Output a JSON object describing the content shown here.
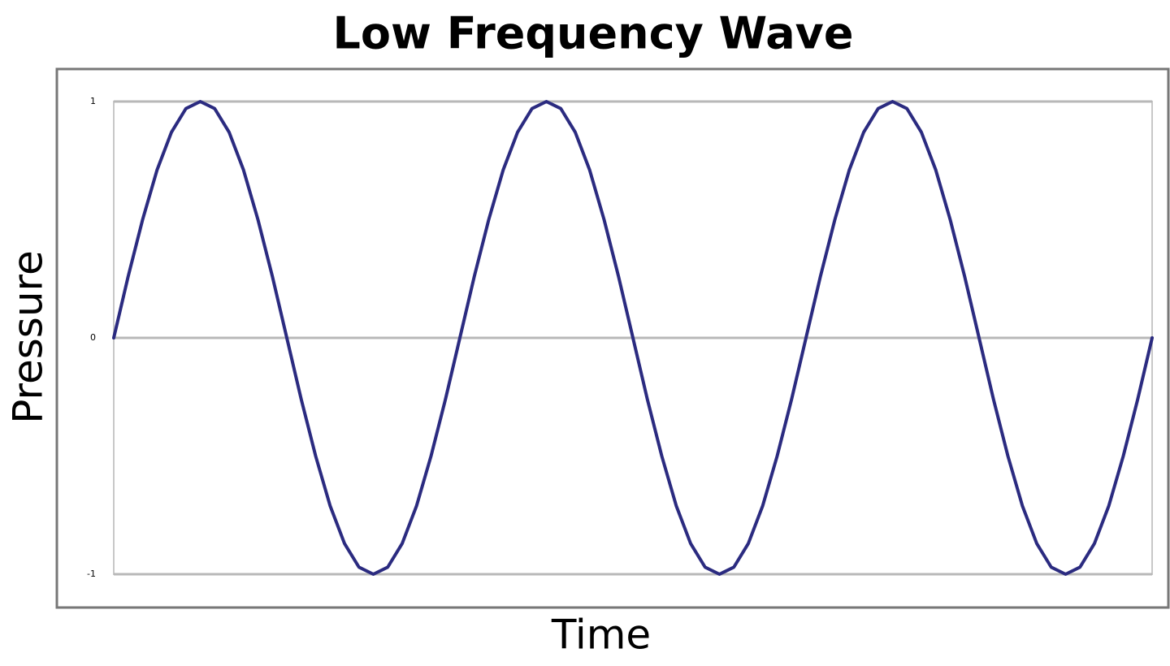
{
  "chart_data": {
    "type": "line",
    "title": "Low Frequency Wave",
    "x_label": "Time",
    "y_label": "Pressure",
    "x": [
      0,
      15,
      30,
      45,
      60,
      75,
      90,
      105,
      120,
      135,
      150,
      165,
      180,
      195,
      210,
      225,
      240,
      255,
      270,
      285,
      300,
      315,
      330,
      345,
      360,
      375,
      390,
      405,
      420,
      435,
      450,
      465,
      480,
      495,
      510,
      525,
      540,
      555,
      570,
      585,
      600,
      615,
      630,
      645,
      660,
      675,
      690,
      705,
      720,
      735,
      750,
      765,
      780,
      795,
      810,
      825,
      840,
      855,
      870,
      885,
      900,
      915,
      930,
      945,
      960,
      975,
      990,
      1005,
      1020,
      1035,
      1050,
      1065,
      1080
    ],
    "values": [
      0,
      0.26,
      0.5,
      0.71,
      0.87,
      0.97,
      1,
      0.97,
      0.87,
      0.71,
      0.5,
      0.26,
      0,
      -0.26,
      -0.5,
      -0.71,
      -0.87,
      -0.97,
      -1,
      -0.97,
      -0.87,
      -0.71,
      -0.5,
      -0.26,
      0,
      0.26,
      0.5,
      0.71,
      0.87,
      0.97,
      1,
      0.97,
      0.87,
      0.71,
      0.5,
      0.26,
      0,
      -0.26,
      -0.5,
      -0.71,
      -0.87,
      -0.97,
      -1,
      -0.97,
      -0.87,
      -0.71,
      -0.5,
      -0.26,
      0,
      0.26,
      0.5,
      0.71,
      0.87,
      0.97,
      1,
      0.97,
      0.87,
      0.71,
      0.5,
      0.26,
      0,
      -0.26,
      -0.5,
      -0.71,
      -0.87,
      -0.97,
      -1,
      -0.97,
      -0.87,
      -0.71,
      -0.5,
      -0.26,
      0
    ],
    "color": "#2b2b80",
    "xlim": [
      0,
      1080
    ],
    "ylim": [
      -1,
      1
    ],
    "yticks": [
      -1,
      0,
      1
    ],
    "grid": true
  }
}
